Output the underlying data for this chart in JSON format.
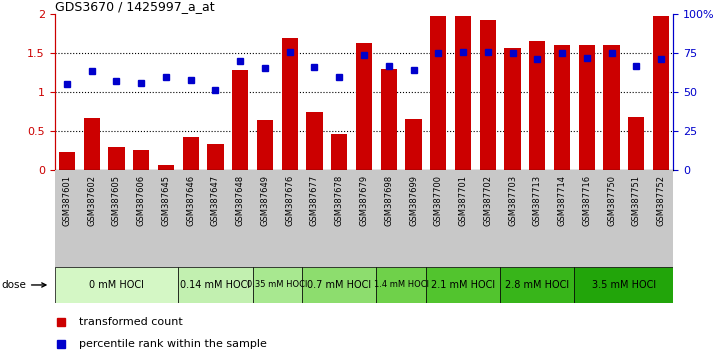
{
  "title": "GDS3670 / 1425997_a_at",
  "samples": [
    "GSM387601",
    "GSM387602",
    "GSM387605",
    "GSM387606",
    "GSM387645",
    "GSM387646",
    "GSM387647",
    "GSM387648",
    "GSM387649",
    "GSM387676",
    "GSM387677",
    "GSM387678",
    "GSM387679",
    "GSM387698",
    "GSM387699",
    "GSM387700",
    "GSM387701",
    "GSM387702",
    "GSM387703",
    "GSM387713",
    "GSM387714",
    "GSM387716",
    "GSM387750",
    "GSM387751",
    "GSM387752"
  ],
  "bar_values": [
    0.23,
    0.67,
    0.29,
    0.26,
    0.06,
    0.42,
    0.33,
    1.28,
    0.64,
    1.7,
    0.74,
    0.46,
    1.63,
    1.3,
    0.66,
    1.97,
    1.97,
    1.92,
    1.56,
    1.65,
    1.6,
    1.6,
    1.6,
    0.68,
    1.97
  ],
  "dot_values": [
    1.1,
    1.27,
    1.14,
    1.11,
    1.19,
    1.15,
    1.02,
    1.4,
    1.31,
    1.51,
    1.32,
    1.19,
    1.47,
    1.33,
    1.28,
    1.5,
    1.51,
    1.51,
    1.5,
    1.42,
    1.5,
    1.44,
    1.5,
    1.33,
    1.43
  ],
  "dose_groups": [
    {
      "label": "0 mM HOCl",
      "start": 0,
      "end": 5
    },
    {
      "label": "0.14 mM HOCl",
      "start": 5,
      "end": 8
    },
    {
      "label": "0.35 mM HOCl",
      "start": 8,
      "end": 10
    },
    {
      "label": "0.7 mM HOCl",
      "start": 10,
      "end": 13
    },
    {
      "label": "1.4 mM HOCl",
      "start": 13,
      "end": 15
    },
    {
      "label": "2.1 mM HOCl",
      "start": 15,
      "end": 18
    },
    {
      "label": "2.8 mM HOCl",
      "start": 18,
      "end": 21
    },
    {
      "label": "3.5 mM HOCl",
      "start": 21,
      "end": 25
    }
  ],
  "dose_colors": [
    "#d4f7c5",
    "#c2f0b0",
    "#a8e890",
    "#8ddd6e",
    "#6fd14a",
    "#52c42e",
    "#38b51a",
    "#22a50a"
  ],
  "bar_color": "#cc0000",
  "dot_color": "#0000cc",
  "ylim": [
    0,
    2.0
  ],
  "background_color": "#ffffff",
  "tick_bg_color": "#c8c8c8",
  "bar_width": 0.65
}
